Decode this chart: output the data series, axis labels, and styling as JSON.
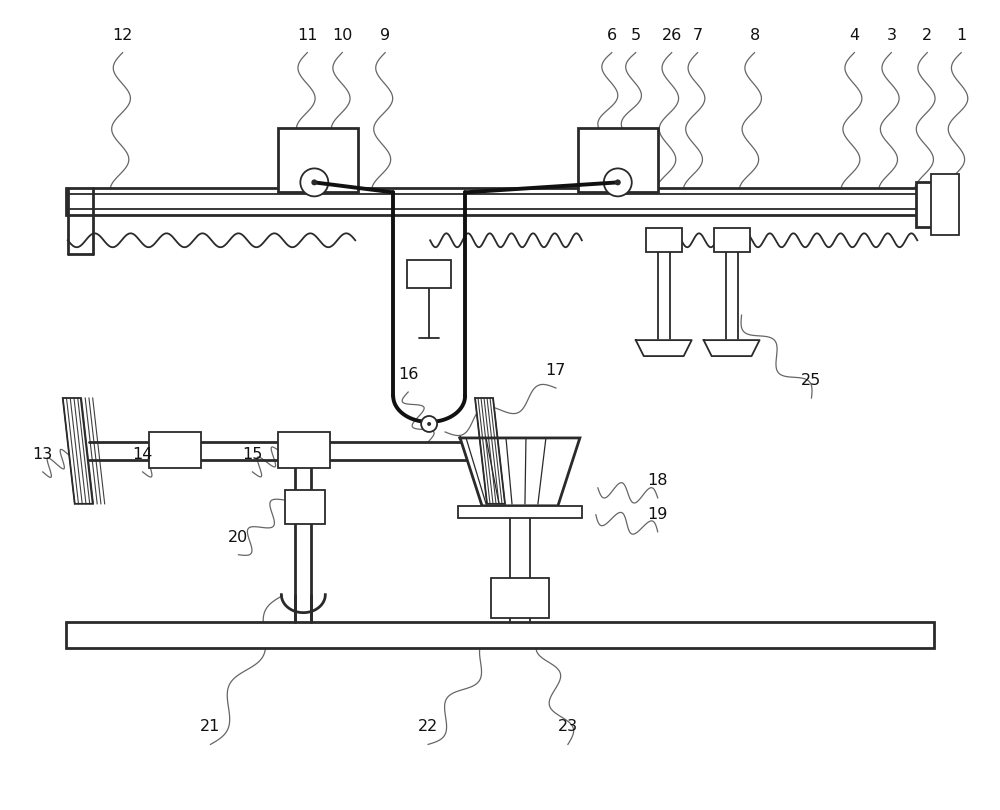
{
  "bg_color": "#ffffff",
  "line_color": "#2a2a2a",
  "fig_width": 10.0,
  "fig_height": 8.1,
  "label_fontsize": 11.5,
  "thin_lw": 1.3,
  "med_lw": 2.0,
  "thick_lw": 2.5,
  "cable_lw": 2.8
}
